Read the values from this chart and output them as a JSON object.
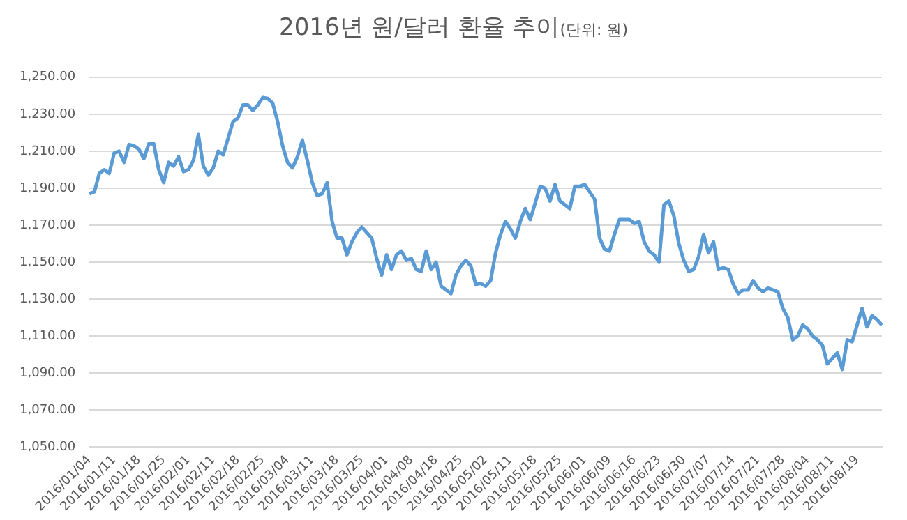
{
  "chart_data": {
    "type": "line",
    "title": "2016년 원/달러 환율 추이",
    "subtitle": "(단위: 원)",
    "categories": [
      "2016/01/04",
      null,
      null,
      null,
      null,
      "2016/01/11",
      null,
      null,
      null,
      null,
      "2016/01/18",
      null,
      null,
      null,
      null,
      "2016/01/25",
      null,
      null,
      null,
      null,
      "2016/02/01",
      null,
      null,
      null,
      null,
      "2016/02/11",
      null,
      null,
      null,
      null,
      "2016/02/18",
      null,
      null,
      null,
      null,
      "2016/02/25",
      null,
      null,
      null,
      null,
      "2016/03/04",
      null,
      null,
      null,
      null,
      "2016/03/11",
      null,
      null,
      null,
      null,
      "2016/03/18",
      null,
      null,
      null,
      null,
      "2016/03/25",
      null,
      null,
      null,
      null,
      "2016/04/01",
      null,
      null,
      null,
      null,
      "2016/04/08",
      null,
      null,
      null,
      null,
      "2016/04/18",
      null,
      null,
      null,
      null,
      "2016/04/25",
      null,
      null,
      null,
      null,
      "2016/05/02",
      null,
      null,
      null,
      null,
      "2016/05/11",
      null,
      null,
      null,
      null,
      "2016/05/18",
      null,
      null,
      null,
      null,
      "2016/05/25",
      null,
      null,
      null,
      null,
      "2016/06/01",
      null,
      null,
      null,
      null,
      "2016/06/09",
      null,
      null,
      null,
      null,
      "2016/06/16",
      null,
      null,
      null,
      null,
      "2016/06/23",
      null,
      null,
      null,
      null,
      "2016/06/30",
      null,
      null,
      null,
      null,
      "2016/07/07",
      null,
      null,
      null,
      null,
      "2016/07/14",
      null,
      null,
      null,
      null,
      "2016/07/21",
      null,
      null,
      null,
      null,
      "2016/07/28",
      null,
      null,
      null,
      null,
      "2016/08/04",
      null,
      null,
      null,
      null,
      "2016/08/11",
      null,
      null,
      null,
      null,
      "2016/08/19",
      null,
      null,
      null,
      null,
      null
    ],
    "series": [
      {
        "color": "#5b9bd5",
        "values": [
          1187,
          1188,
          1198,
          1200,
          1198,
          1209,
          1210,
          1204,
          1213.6,
          1213,
          1211,
          1206,
          1214,
          1214,
          1200,
          1193,
          1204,
          1202,
          1207,
          1199,
          1200,
          1205,
          1219,
          1202,
          1197,
          1201,
          1210,
          1208,
          1217,
          1226,
          1228,
          1235,
          1235,
          1232,
          1235,
          1239,
          1238.5,
          1236,
          1226,
          1213,
          1204,
          1201,
          1207,
          1216,
          1205,
          1193,
          1186,
          1187,
          1193,
          1172,
          1163,
          1163,
          1154,
          1161,
          1166,
          1169,
          1166,
          1163,
          1152,
          1143,
          1154,
          1146,
          1154,
          1156,
          1151,
          1152,
          1146,
          1145,
          1156,
          1146,
          1150,
          1137,
          1135,
          1133,
          1143,
          1148,
          1151,
          1148,
          1138,
          1138.5,
          1137,
          1140,
          1155,
          1165,
          1172,
          1168,
          1163,
          1172,
          1179,
          1173,
          1182,
          1191,
          1190,
          1183,
          1192,
          1183,
          1181,
          1179,
          1191,
          1191,
          1192,
          1188,
          1184,
          1163,
          1157,
          1156,
          1165,
          1173,
          1173,
          1173,
          1171,
          1172,
          1161,
          1156,
          1154,
          1150,
          1181,
          1183,
          1175,
          1160,
          1151,
          1145,
          1146,
          1153,
          1165,
          1155,
          1161,
          1146,
          1147,
          1146,
          1138,
          1133,
          1135,
          1135,
          1140,
          1136,
          1134,
          1136,
          1135,
          1134,
          1125,
          1120,
          1108,
          1110,
          1116,
          1114,
          1110,
          1108,
          1105,
          1095,
          1098,
          1101,
          1092,
          1108,
          1107,
          1116,
          1125,
          1115,
          1121,
          1119,
          1116
        ]
      }
    ],
    "ylim": [
      1050,
      1250
    ],
    "yticks": [
      {
        "value": 1050,
        "label": "1,050.00"
      },
      {
        "value": 1070,
        "label": "1,070.00"
      },
      {
        "value": 1090,
        "label": "1,090.00"
      },
      {
        "value": 1110,
        "label": "1,110.00"
      },
      {
        "value": 1130,
        "label": "1,130.00"
      },
      {
        "value": 1150,
        "label": "1,150.00"
      },
      {
        "value": 1170,
        "label": "1,170.00"
      },
      {
        "value": 1190,
        "label": "1,190.00"
      },
      {
        "value": 1210,
        "label": "1,210.00"
      },
      {
        "value": 1230,
        "label": "1,230.00"
      },
      {
        "value": 1250,
        "label": "1,250.00"
      }
    ],
    "grid": "y",
    "legend": false,
    "marker": "none",
    "line_style": "solid"
  }
}
